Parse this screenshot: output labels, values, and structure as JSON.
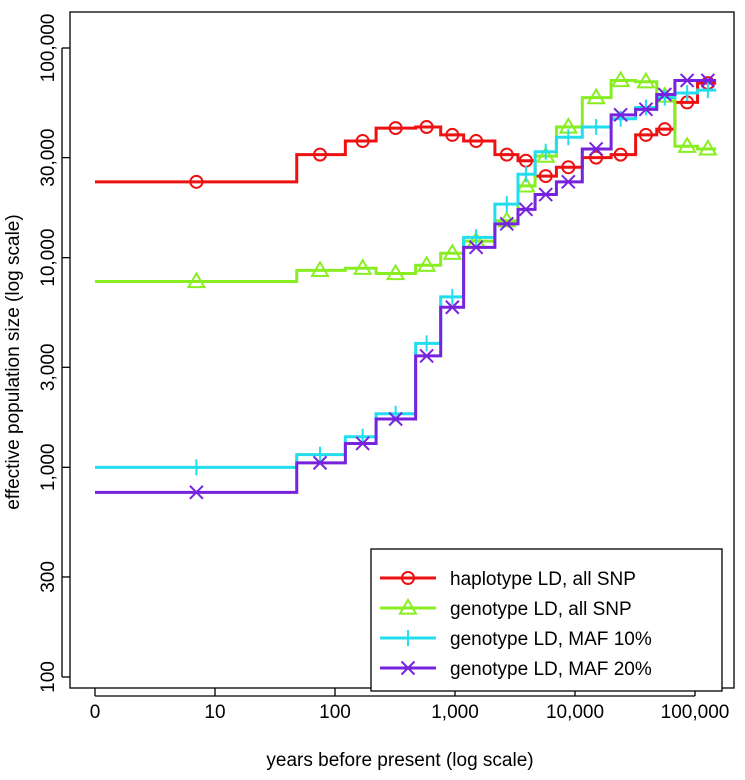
{
  "chart_data": {
    "type": "line",
    "step": true,
    "title": "",
    "xlabel": "years before present (log scale)",
    "ylabel": "effective population size (log scale)",
    "xscale": "log",
    "yscale": "log",
    "xlim": [
      1,
      150000
    ],
    "ylim": [
      100,
      100000
    ],
    "x_ticks": [
      {
        "value": 1,
        "label": "0"
      },
      {
        "value": 10,
        "label": "10"
      },
      {
        "value": 100,
        "label": "100"
      },
      {
        "value": 1000,
        "label": "1,000"
      },
      {
        "value": 10000,
        "label": "10,000"
      },
      {
        "value": 100000,
        "label": "100,000"
      }
    ],
    "y_ticks": [
      {
        "value": 100,
        "label": "100"
      },
      {
        "value": 300,
        "label": "300"
      },
      {
        "value": 1000,
        "label": "1,000"
      },
      {
        "value": 3000,
        "label": "3,000"
      },
      {
        "value": 10000,
        "label": "10,000"
      },
      {
        "value": 30000,
        "label": "30,000"
      },
      {
        "value": 100000,
        "label": "100,000"
      }
    ],
    "grid": false,
    "legend_position": "bottom-right",
    "series": [
      {
        "name": "haplotype LD, all SNP",
        "color": "#ee1111",
        "marker": "circle",
        "steps": [
          {
            "x0": 1,
            "x1": 48,
            "y": 23000
          },
          {
            "x0": 48,
            "x1": 122,
            "y": 31000
          },
          {
            "x0": 122,
            "x1": 220,
            "y": 36000
          },
          {
            "x0": 220,
            "x1": 470,
            "y": 41500
          },
          {
            "x0": 470,
            "x1": 760,
            "y": 42000
          },
          {
            "x0": 760,
            "x1": 1180,
            "y": 38500
          },
          {
            "x0": 1180,
            "x1": 2150,
            "y": 36000
          },
          {
            "x0": 2150,
            "x1": 3350,
            "y": 31000
          },
          {
            "x0": 3350,
            "x1": 4650,
            "y": 29000
          },
          {
            "x0": 4650,
            "x1": 7000,
            "y": 24500
          },
          {
            "x0": 7000,
            "x1": 11500,
            "y": 27000
          },
          {
            "x0": 11500,
            "x1": 20000,
            "y": 30000
          },
          {
            "x0": 20000,
            "x1": 32000,
            "y": 31000
          },
          {
            "x0": 32000,
            "x1": 48000,
            "y": 38500
          },
          {
            "x0": 48000,
            "x1": 68000,
            "y": 41000
          },
          {
            "x0": 68000,
            "x1": 105000,
            "y": 55000
          },
          {
            "x0": 105000,
            "x1": 150000,
            "y": 68000
          }
        ],
        "points": [
          {
            "x": 7,
            "y": 23000
          },
          {
            "x": 75,
            "y": 31000
          },
          {
            "x": 170,
            "y": 36000
          },
          {
            "x": 320,
            "y": 41500
          },
          {
            "x": 580,
            "y": 42000
          },
          {
            "x": 950,
            "y": 38500
          },
          {
            "x": 1500,
            "y": 36000
          },
          {
            "x": 2700,
            "y": 31000
          },
          {
            "x": 3900,
            "y": 29000
          },
          {
            "x": 5700,
            "y": 24500
          },
          {
            "x": 8800,
            "y": 27000
          },
          {
            "x": 15000,
            "y": 30000
          },
          {
            "x": 24000,
            "y": 31000
          },
          {
            "x": 39000,
            "y": 38500
          },
          {
            "x": 56000,
            "y": 41000
          },
          {
            "x": 86000,
            "y": 55000
          },
          {
            "x": 128000,
            "y": 68000
          }
        ]
      },
      {
        "name": "genotype LD, all SNP",
        "color": "#88ee22",
        "marker": "triangle",
        "steps": [
          {
            "x0": 1,
            "x1": 48,
            "y": 7700
          },
          {
            "x0": 48,
            "x1": 122,
            "y": 8700
          },
          {
            "x0": 122,
            "x1": 220,
            "y": 8900
          },
          {
            "x0": 220,
            "x1": 470,
            "y": 8400
          },
          {
            "x0": 470,
            "x1": 760,
            "y": 9200
          },
          {
            "x0": 760,
            "x1": 1180,
            "y": 10500
          },
          {
            "x0": 1180,
            "x1": 2150,
            "y": 12000
          },
          {
            "x0": 2150,
            "x1": 3350,
            "y": 15000
          },
          {
            "x0": 3350,
            "x1": 4650,
            "y": 22000
          },
          {
            "x0": 4650,
            "x1": 7000,
            "y": 30500
          },
          {
            "x0": 7000,
            "x1": 11500,
            "y": 42000
          },
          {
            "x0": 11500,
            "x1": 20000,
            "y": 58000
          },
          {
            "x0": 20000,
            "x1": 32000,
            "y": 70000
          },
          {
            "x0": 32000,
            "x1": 48000,
            "y": 69000
          },
          {
            "x0": 48000,
            "x1": 68000,
            "y": 59000
          },
          {
            "x0": 68000,
            "x1": 105000,
            "y": 34000
          },
          {
            "x0": 105000,
            "x1": 150000,
            "y": 33000
          }
        ],
        "points": [
          {
            "x": 7,
            "y": 7700
          },
          {
            "x": 75,
            "y": 8700
          },
          {
            "x": 170,
            "y": 8900
          },
          {
            "x": 320,
            "y": 8400
          },
          {
            "x": 580,
            "y": 9200
          },
          {
            "x": 950,
            "y": 10500
          },
          {
            "x": 1500,
            "y": 12000
          },
          {
            "x": 2700,
            "y": 15000
          },
          {
            "x": 3900,
            "y": 22000
          },
          {
            "x": 5700,
            "y": 30500
          },
          {
            "x": 8800,
            "y": 42000
          },
          {
            "x": 15000,
            "y": 58000
          },
          {
            "x": 24000,
            "y": 70000
          },
          {
            "x": 39000,
            "y": 69000
          },
          {
            "x": 56000,
            "y": 59000
          },
          {
            "x": 86000,
            "y": 34000
          },
          {
            "x": 128000,
            "y": 33000
          }
        ]
      },
      {
        "name": "genotype LD, MAF 10%",
        "color": "#22ddee",
        "marker": "plus",
        "steps": [
          {
            "x0": 1,
            "x1": 48,
            "y": 1000
          },
          {
            "x0": 48,
            "x1": 122,
            "y": 1150
          },
          {
            "x0": 122,
            "x1": 220,
            "y": 1400
          },
          {
            "x0": 220,
            "x1": 470,
            "y": 1800
          },
          {
            "x0": 470,
            "x1": 760,
            "y": 3900
          },
          {
            "x0": 760,
            "x1": 1180,
            "y": 6500
          },
          {
            "x0": 1180,
            "x1": 2150,
            "y": 12500
          },
          {
            "x0": 2150,
            "x1": 3350,
            "y": 18000
          },
          {
            "x0": 3350,
            "x1": 4650,
            "y": 25000
          },
          {
            "x0": 4650,
            "x1": 7000,
            "y": 32000
          },
          {
            "x0": 7000,
            "x1": 11500,
            "y": 37500
          },
          {
            "x0": 11500,
            "x1": 20000,
            "y": 42000
          },
          {
            "x0": 20000,
            "x1": 32000,
            "y": 46000
          },
          {
            "x0": 32000,
            "x1": 48000,
            "y": 52000
          },
          {
            "x0": 48000,
            "x1": 68000,
            "y": 58000
          },
          {
            "x0": 68000,
            "x1": 105000,
            "y": 61000
          },
          {
            "x0": 105000,
            "x1": 150000,
            "y": 63000
          }
        ],
        "points": [
          {
            "x": 7,
            "y": 1000
          },
          {
            "x": 75,
            "y": 1150
          },
          {
            "x": 170,
            "y": 1400
          },
          {
            "x": 320,
            "y": 1800
          },
          {
            "x": 580,
            "y": 3900
          },
          {
            "x": 950,
            "y": 6500
          },
          {
            "x": 1500,
            "y": 12500
          },
          {
            "x": 2700,
            "y": 18000
          },
          {
            "x": 3900,
            "y": 25000
          },
          {
            "x": 5700,
            "y": 32000
          },
          {
            "x": 8800,
            "y": 37500
          },
          {
            "x": 15000,
            "y": 42000
          },
          {
            "x": 24000,
            "y": 46000
          },
          {
            "x": 39000,
            "y": 52000
          },
          {
            "x": 56000,
            "y": 58000
          },
          {
            "x": 86000,
            "y": 61000
          },
          {
            "x": 128000,
            "y": 63000
          }
        ]
      },
      {
        "name": "genotype LD, MAF 20%",
        "color": "#7722dd",
        "marker": "cross",
        "steps": [
          {
            "x0": 1,
            "x1": 48,
            "y": 760
          },
          {
            "x0": 48,
            "x1": 122,
            "y": 1050
          },
          {
            "x0": 122,
            "x1": 220,
            "y": 1300
          },
          {
            "x0": 220,
            "x1": 470,
            "y": 1700
          },
          {
            "x0": 470,
            "x1": 760,
            "y": 3400
          },
          {
            "x0": 760,
            "x1": 1180,
            "y": 5800
          },
          {
            "x0": 1180,
            "x1": 2150,
            "y": 11200
          },
          {
            "x0": 2150,
            "x1": 3350,
            "y": 14500
          },
          {
            "x0": 3350,
            "x1": 4650,
            "y": 17000
          },
          {
            "x0": 4650,
            "x1": 7000,
            "y": 20000
          },
          {
            "x0": 7000,
            "x1": 11500,
            "y": 23000
          },
          {
            "x0": 11500,
            "x1": 20000,
            "y": 33000
          },
          {
            "x0": 20000,
            "x1": 32000,
            "y": 48000
          },
          {
            "x0": 32000,
            "x1": 48000,
            "y": 51000
          },
          {
            "x0": 48000,
            "x1": 68000,
            "y": 60000
          },
          {
            "x0": 68000,
            "x1": 105000,
            "y": 70000
          },
          {
            "x0": 105000,
            "x1": 150000,
            "y": 70000
          }
        ],
        "points": [
          {
            "x": 7,
            "y": 760
          },
          {
            "x": 75,
            "y": 1050
          },
          {
            "x": 170,
            "y": 1300
          },
          {
            "x": 320,
            "y": 1700
          },
          {
            "x": 580,
            "y": 3400
          },
          {
            "x": 950,
            "y": 5800
          },
          {
            "x": 1500,
            "y": 11200
          },
          {
            "x": 2700,
            "y": 14500
          },
          {
            "x": 3900,
            "y": 17000
          },
          {
            "x": 5700,
            "y": 20000
          },
          {
            "x": 8800,
            "y": 23000
          },
          {
            "x": 15000,
            "y": 33000
          },
          {
            "x": 24000,
            "y": 48000
          },
          {
            "x": 39000,
            "y": 51000
          },
          {
            "x": 56000,
            "y": 60000
          },
          {
            "x": 86000,
            "y": 70000
          },
          {
            "x": 128000,
            "y": 70000
          }
        ]
      }
    ]
  }
}
